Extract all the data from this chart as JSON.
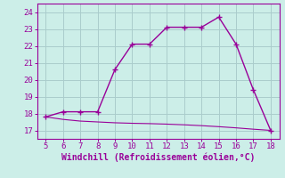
{
  "x": [
    5,
    6,
    7,
    8,
    9,
    10,
    11,
    12,
    13,
    14,
    15,
    16,
    17,
    18
  ],
  "y_line1": [
    17.8,
    18.1,
    18.1,
    18.1,
    20.6,
    22.1,
    22.1,
    23.1,
    23.1,
    23.1,
    23.7,
    22.1,
    19.4,
    17.0
  ],
  "y_line2": [
    17.8,
    17.65,
    17.55,
    17.5,
    17.45,
    17.42,
    17.4,
    17.37,
    17.33,
    17.28,
    17.22,
    17.15,
    17.07,
    17.0
  ],
  "line_color": "#990099",
  "bg_color": "#cceee8",
  "grid_color": "#aacccc",
  "xlabel": "Windchill (Refroidissement éolien,°C)",
  "xlim": [
    4.5,
    18.5
  ],
  "ylim": [
    16.5,
    24.5
  ],
  "xticks": [
    5,
    6,
    7,
    8,
    9,
    10,
    11,
    12,
    13,
    14,
    15,
    16,
    17,
    18
  ],
  "yticks": [
    17,
    18,
    19,
    20,
    21,
    22,
    23,
    24
  ],
  "tick_color": "#990099",
  "label_color": "#990099",
  "marker": "+"
}
